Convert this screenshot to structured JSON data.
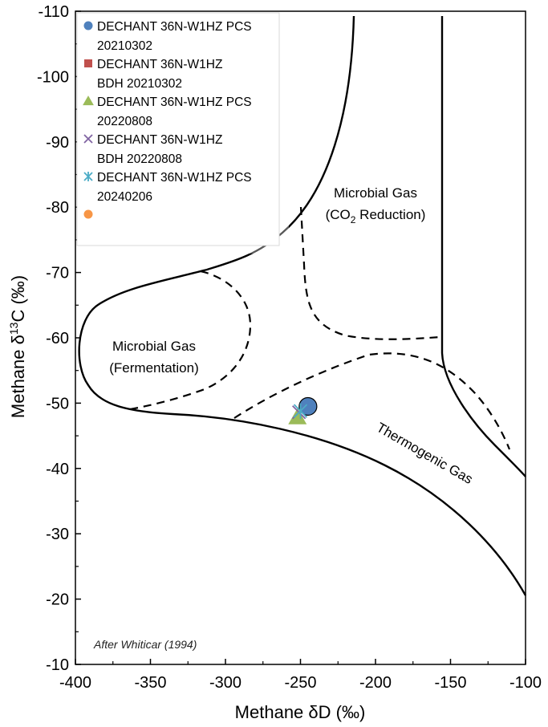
{
  "chart_data": {
    "type": "scatter",
    "xlabel": "Methane δD (‰)",
    "ylabel_prefix": "Methane δ",
    "ylabel_sup": "13",
    "ylabel_suffix": "C (‰)",
    "xlim": [
      -400,
      -100
    ],
    "ylim": [
      -10,
      -110
    ],
    "x_ticks": [
      "-400",
      "-350",
      "-300",
      "-250",
      "-200",
      "-150",
      "-100"
    ],
    "y_ticks": [
      "-10",
      "-20",
      "-30",
      "-40",
      "-50",
      "-60",
      "-70",
      "-80",
      "-90",
      "-100",
      "-110"
    ],
    "y_tick_values": [
      -10,
      -20,
      -30,
      -40,
      -50,
      -60,
      -70,
      -80,
      -90,
      -100,
      -110
    ],
    "x_tick_values": [
      -400,
      -350,
      -300,
      -250,
      -200,
      -150,
      -100
    ],
    "grid": false,
    "legend_position": "top-left",
    "series": [
      {
        "name_line1": "DECHANT 36N-W1HZ PCS",
        "name_line2": "20210302",
        "marker": "circle",
        "color": "#4f81bd",
        "points": [
          [
            -245,
            -49.5
          ]
        ]
      },
      {
        "name_line1": "DECHANT 36N-W1HZ",
        "name_line2": "BDH 20210302",
        "marker": "square",
        "color": "#c0504d",
        "points": []
      },
      {
        "name_line1": "DECHANT 36N-W1HZ PCS",
        "name_line2": "20220808",
        "marker": "triangle",
        "color": "#9bbb59",
        "points": [
          [
            -252,
            -47.8
          ]
        ]
      },
      {
        "name_line1": "DECHANT 36N-W1HZ",
        "name_line2": "BDH 20220808",
        "marker": "x",
        "color": "#8064a2",
        "points": [
          [
            -251,
            -48.6
          ]
        ]
      },
      {
        "name_line1": "DECHANT 36N-W1HZ PCS",
        "name_line2": "20240206",
        "marker": "star",
        "color": "#4bacc6",
        "points": [
          [
            -250,
            -48.8
          ]
        ]
      },
      {
        "name_line1": "",
        "name_line2": "",
        "marker": "circle",
        "color": "#f79646",
        "points": []
      }
    ],
    "regions": {
      "microbial_co2_line1": "Microbial Gas",
      "microbial_co2_line2_prefix": "(CO",
      "microbial_co2_line2_sub": "2",
      "microbial_co2_line2_suffix": " Reduction)",
      "fermentation_line1": "Microbial Gas",
      "fermentation_line2": "(Fermentation)",
      "thermogenic": "Thermogenic Gas"
    },
    "credit": "After Whiticar (1994)"
  }
}
